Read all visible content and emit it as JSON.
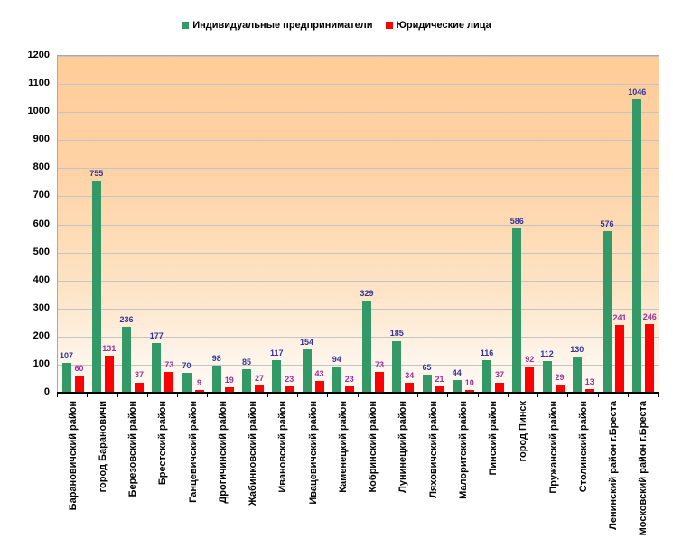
{
  "legend": [
    {
      "label": "Индивидуальные предприниматели",
      "color": "#339966"
    },
    {
      "label": "Юридические лица",
      "color": "#ff0000"
    }
  ],
  "chart_data": {
    "type": "bar",
    "title": "",
    "xlabel": "",
    "ylabel": "",
    "ylim": [
      0,
      1200
    ],
    "ytick_step": 100,
    "yticks": [
      0,
      100,
      200,
      300,
      400,
      500,
      600,
      700,
      800,
      900,
      1000,
      1100,
      1200
    ],
    "grid": true,
    "legend_position": "top",
    "categories": [
      "Барановичский район",
      "город Барановичи",
      "Березовский район",
      "Брестский район",
      "Ганцевичский район",
      "Дрогичинский район",
      "Жабинковский район",
      "Ивановский район",
      "Ивацевичский район",
      "Каменецкий район",
      "Кобринский район",
      "Лунинецкий район",
      "Ляховичский район",
      "Малоритский район",
      "Пинский район",
      "город Пинск",
      "Пружанский район",
      "Столинский район",
      "Ленинский район г.Бреста",
      "Московский район г.Бреста"
    ],
    "series": [
      {
        "name": "Индивидуальные предприниматели",
        "color": "#339966",
        "label_color": "#333399",
        "values": [
          107,
          755,
          236,
          177,
          70,
          98,
          85,
          117,
          154,
          94,
          329,
          185,
          65,
          44,
          116,
          586,
          112,
          130,
          576,
          1046
        ]
      },
      {
        "name": "Юридические лица",
        "color": "#ff0000",
        "label_color": "#993399",
        "values": [
          60,
          131,
          37,
          73,
          9,
          19,
          27,
          23,
          43,
          23,
          73,
          34,
          21,
          10,
          37,
          92,
          29,
          13,
          241,
          246
        ]
      }
    ],
    "colors": {
      "plot_bg_top": "#ffcc99",
      "plot_bg_bottom": "#fffaf5",
      "gridline": "#c4c4c4",
      "plot_border": "#a9a9a9",
      "axis": "#000000"
    }
  }
}
